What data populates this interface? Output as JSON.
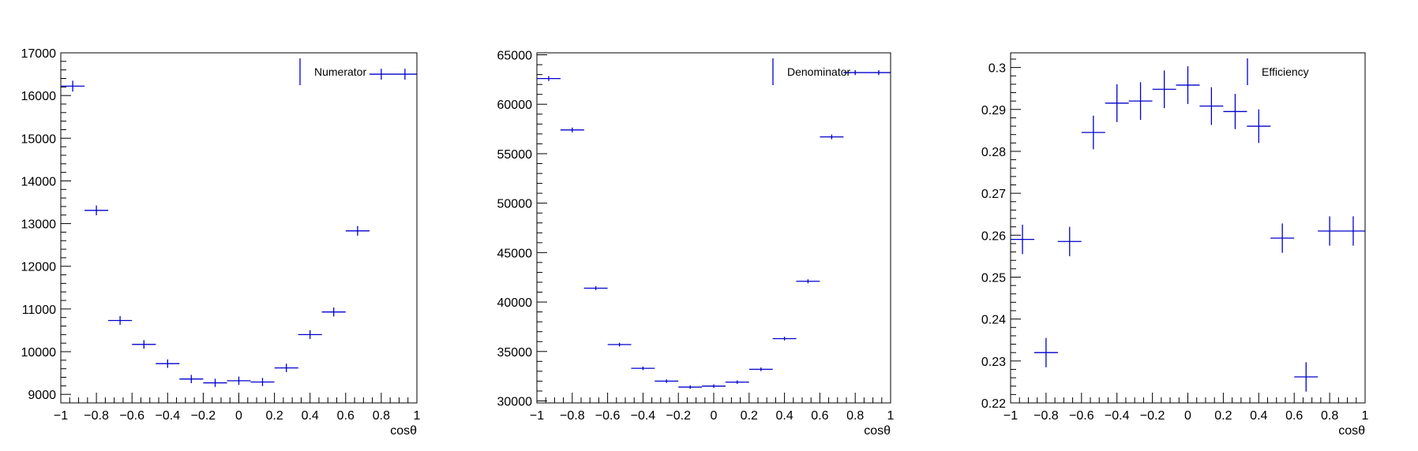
{
  "chart_data": [
    {
      "type": "scatter",
      "xlabel": "cosθ",
      "ylabel": "",
      "xlim": [
        -1,
        1
      ],
      "ylim": [
        8800,
        17000
      ],
      "x_ticks": [
        -1,
        -0.8,
        -0.6,
        -0.4,
        -0.2,
        0,
        0.2,
        0.4,
        0.6,
        0.8,
        1
      ],
      "x_tick_labels": [
        "−1",
        "−0.8",
        "−0.6",
        "−0.4",
        "−0.2",
        "0",
        "0.2",
        "0.4",
        "0.6",
        "0.8",
        "1"
      ],
      "y_ticks": [
        9000,
        10000,
        11000,
        12000,
        13000,
        14000,
        15000,
        16000,
        17000
      ],
      "y_tick_labels": [
        "9000",
        "10000",
        "11000",
        "12000",
        "13000",
        "14000",
        "15000",
        "16000",
        "17000"
      ],
      "legend": {
        "label": "Numerator",
        "position": "top-right"
      },
      "color": "#0000cc",
      "series": [
        {
          "name": "Numerator",
          "x": [
            -0.933,
            -0.8,
            -0.667,
            -0.533,
            -0.4,
            -0.267,
            -0.133,
            0.0,
            0.133,
            0.267,
            0.4,
            0.533,
            0.667,
            0.8,
            0.933
          ],
          "x_err": 0.0667,
          "y": [
            16220,
            13310,
            10730,
            10170,
            9720,
            9360,
            9270,
            9320,
            9290,
            9620,
            10400,
            10930,
            12830,
            16500,
            16500
          ],
          "y_err": [
            127,
            115,
            104,
            101,
            99,
            97,
            96,
            97,
            96,
            98,
            102,
            105,
            113,
            128,
            128
          ]
        }
      ]
    },
    {
      "type": "scatter",
      "xlabel": "cosθ",
      "ylabel": "",
      "xlim": [
        -1,
        1
      ],
      "ylim": [
        29800,
        65200
      ],
      "x_ticks": [
        -1,
        -0.8,
        -0.6,
        -0.4,
        -0.2,
        0,
        0.2,
        0.4,
        0.6,
        0.8,
        1
      ],
      "x_tick_labels": [
        "−1",
        "−0.8",
        "−0.6",
        "−0.4",
        "−0.2",
        "0",
        "0.2",
        "0.4",
        "0.6",
        "0.8",
        "1"
      ],
      "y_ticks": [
        30000,
        35000,
        40000,
        45000,
        50000,
        55000,
        60000,
        65000
      ],
      "y_tick_labels": [
        "30000",
        "35000",
        "40000",
        "45000",
        "50000",
        "55000",
        "60000",
        "65000"
      ],
      "legend": {
        "label": "Denominator",
        "position": "top-right"
      },
      "color": "#0000cc",
      "series": [
        {
          "name": "Denominator",
          "x": [
            -0.933,
            -0.8,
            -0.667,
            -0.533,
            -0.4,
            -0.267,
            -0.133,
            0.0,
            0.133,
            0.267,
            0.4,
            0.533,
            0.667,
            0.8,
            0.933
          ],
          "x_err": 0.0667,
          "y": [
            62600,
            57400,
            41400,
            35700,
            33300,
            32000,
            31400,
            31500,
            31900,
            33200,
            36300,
            42100,
            56700,
            63200,
            63200
          ],
          "y_err": [
            250,
            240,
            203,
            189,
            182,
            179,
            177,
            177,
            179,
            182,
            190,
            205,
            238,
            251,
            251
          ]
        }
      ]
    },
    {
      "type": "scatter",
      "xlabel": "cosθ",
      "ylabel": "",
      "xlim": [
        -1,
        1
      ],
      "ylim": [
        0.22,
        0.3035
      ],
      "x_ticks": [
        -1,
        -0.8,
        -0.6,
        -0.4,
        -0.2,
        0,
        0.2,
        0.4,
        0.6,
        0.8,
        1
      ],
      "x_tick_labels": [
        "−1",
        "−0.8",
        "−0.6",
        "−0.4",
        "−0.2",
        "0",
        "0.2",
        "0.4",
        "0.6",
        "0.8",
        "1"
      ],
      "y_ticks": [
        0.22,
        0.23,
        0.24,
        0.25,
        0.26,
        0.27,
        0.28,
        0.29,
        0.3
      ],
      "y_tick_labels": [
        "0.22",
        "0.23",
        "0.24",
        "0.25",
        "0.26",
        "0.27",
        "0.28",
        "0.29",
        "0.3"
      ],
      "legend": {
        "label": "Efficiency",
        "position": "top-right"
      },
      "color": "#0000cc",
      "series": [
        {
          "name": "Efficiency",
          "x": [
            -0.933,
            -0.8,
            -0.667,
            -0.533,
            -0.4,
            -0.267,
            -0.133,
            0.0,
            0.133,
            0.267,
            0.4,
            0.533,
            0.667,
            0.8,
            0.933
          ],
          "x_err": 0.0667,
          "y": [
            0.259,
            0.232,
            0.2585,
            0.2845,
            0.2915,
            0.292,
            0.2948,
            0.2958,
            0.2908,
            0.2895,
            0.286,
            0.2593,
            0.2262,
            0.261,
            0.261
          ],
          "y_err": [
            0.0035,
            0.0035,
            0.0035,
            0.004,
            0.0045,
            0.0045,
            0.0045,
            0.0045,
            0.0045,
            0.0042,
            0.004,
            0.0035,
            0.0035,
            0.0035,
            0.0035
          ]
        }
      ]
    }
  ]
}
